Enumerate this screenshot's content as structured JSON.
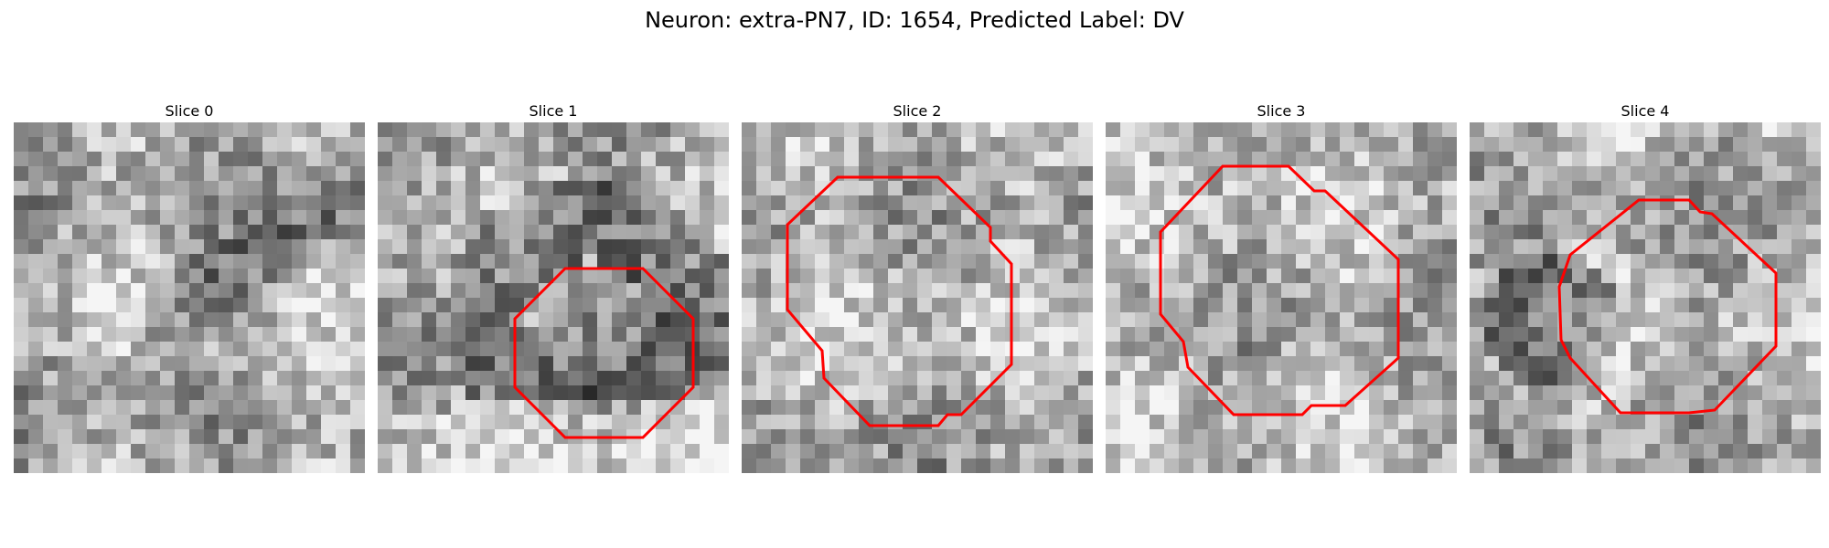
{
  "figure": {
    "title": "Neuron: extra-PN7, ID: 1654, Predicted Label: DV"
  },
  "slices": [
    {
      "title": "Slice 0",
      "outline": false,
      "seed": 11,
      "dark": "diag"
    },
    {
      "title": "Slice 1",
      "outline": true,
      "seed": 23,
      "dark": "arc"
    },
    {
      "title": "Slice 2",
      "outline": true,
      "seed": 37,
      "dark": "none"
    },
    {
      "title": "Slice 3",
      "outline": true,
      "seed": 51,
      "dark": "none"
    },
    {
      "title": "Slice 4",
      "outline": true,
      "seed": 73,
      "dark": "left"
    }
  ],
  "style": {
    "outline_color": "#ff0000"
  }
}
